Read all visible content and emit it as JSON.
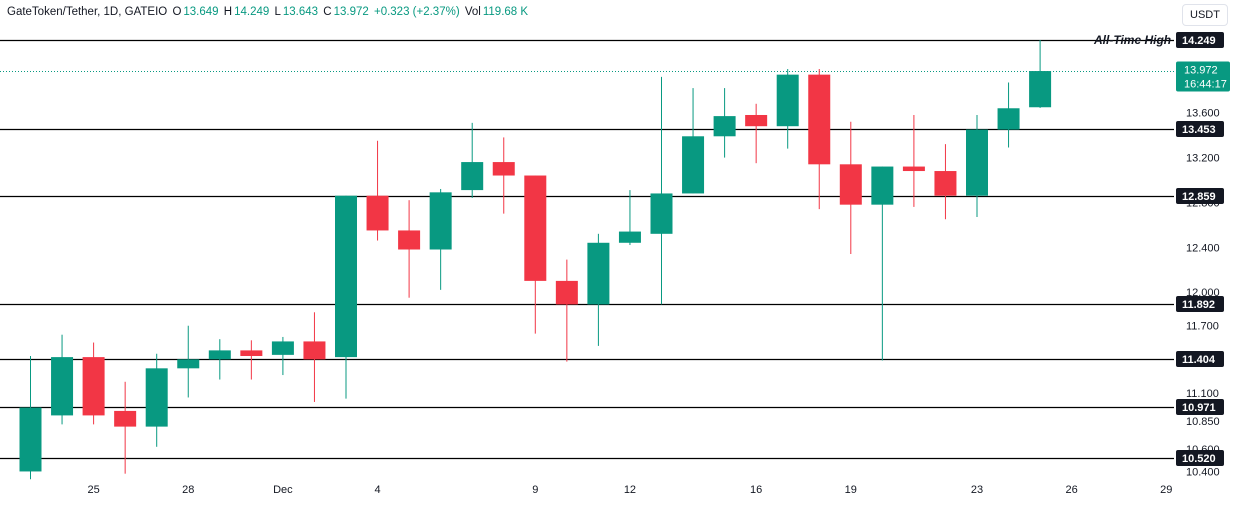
{
  "header": {
    "symbol": "GateToken/Tether, 1D, GATEIO",
    "o_label": "O",
    "o_value": "13.649",
    "h_label": "H",
    "h_value": "14.249",
    "l_label": "L",
    "l_value": "13.643",
    "c_label": "C",
    "c_value": "13.972",
    "change": "+0.323 (+2.37%)",
    "vol_label": "Vol",
    "vol_value": "119.68 K"
  },
  "currency_button": "USDT",
  "ath_label": "All-Time High",
  "price_tag": {
    "price": "13.972",
    "countdown": "16:44:17"
  },
  "colors": {
    "up": "#089981",
    "down": "#f23645",
    "line": "#000000",
    "tag": "#131722",
    "grid_text": "#131722"
  },
  "chart_data": {
    "type": "candlestick",
    "title": "GateToken/Tether, 1D, GATEIO",
    "x_tick_labels": [
      {
        "index": 2,
        "label": "25"
      },
      {
        "index": 5,
        "label": "28"
      },
      {
        "index": 8,
        "label": "Dec"
      },
      {
        "index": 11,
        "label": "4"
      },
      {
        "index": 16,
        "label": "9"
      },
      {
        "index": 19,
        "label": "12"
      },
      {
        "index": 23,
        "label": "16"
      },
      {
        "index": 26,
        "label": "19"
      },
      {
        "index": 30,
        "label": "23"
      },
      {
        "index": 33,
        "label": "26"
      },
      {
        "index": 36,
        "label": "29"
      }
    ],
    "y_ticks": [
      "10.400",
      "10.600",
      "10.850",
      "11.100",
      "11.700",
      "12.000",
      "12.400",
      "12.800",
      "13.200",
      "13.600"
    ],
    "y_range": [
      10.35,
      14.45
    ],
    "horizontal_lines": [
      "10.520",
      "10.971",
      "11.404",
      "11.892",
      "12.859",
      "13.453",
      "14.249"
    ],
    "last_price": 13.972,
    "candles": [
      {
        "o": 10.4,
        "h": 11.43,
        "l": 10.33,
        "c": 10.97
      },
      {
        "o": 10.9,
        "h": 11.62,
        "l": 10.82,
        "c": 11.42
      },
      {
        "o": 11.42,
        "h": 11.55,
        "l": 10.82,
        "c": 10.9
      },
      {
        "o": 10.94,
        "h": 11.2,
        "l": 10.38,
        "c": 10.8
      },
      {
        "o": 10.8,
        "h": 11.45,
        "l": 10.62,
        "c": 11.32
      },
      {
        "o": 11.32,
        "h": 11.7,
        "l": 11.06,
        "c": 11.4
      },
      {
        "o": 11.4,
        "h": 11.58,
        "l": 11.22,
        "c": 11.48
      },
      {
        "o": 11.48,
        "h": 11.57,
        "l": 11.22,
        "c": 11.43
      },
      {
        "o": 11.44,
        "h": 11.6,
        "l": 11.26,
        "c": 11.56
      },
      {
        "o": 11.56,
        "h": 11.82,
        "l": 11.02,
        "c": 11.4
      },
      {
        "o": 11.42,
        "h": 12.86,
        "l": 11.05,
        "c": 12.86
      },
      {
        "o": 12.86,
        "h": 13.35,
        "l": 12.46,
        "c": 12.55
      },
      {
        "o": 12.55,
        "h": 12.82,
        "l": 11.95,
        "c": 12.38
      },
      {
        "o": 12.38,
        "h": 12.92,
        "l": 12.02,
        "c": 12.89
      },
      {
        "o": 12.91,
        "h": 13.51,
        "l": 12.84,
        "c": 13.16
      },
      {
        "o": 13.16,
        "h": 13.38,
        "l": 12.7,
        "c": 13.04
      },
      {
        "o": 13.04,
        "h": 13.04,
        "l": 11.63,
        "c": 12.1
      },
      {
        "o": 12.1,
        "h": 12.29,
        "l": 11.38,
        "c": 11.89
      },
      {
        "o": 11.89,
        "h": 12.52,
        "l": 11.52,
        "c": 12.44
      },
      {
        "o": 12.44,
        "h": 12.91,
        "l": 12.42,
        "c": 12.54
      },
      {
        "o": 12.52,
        "h": 13.92,
        "l": 11.89,
        "c": 12.88
      },
      {
        "o": 12.88,
        "h": 13.82,
        "l": 12.88,
        "c": 13.39
      },
      {
        "o": 13.39,
        "h": 13.82,
        "l": 13.2,
        "c": 13.57
      },
      {
        "o": 13.58,
        "h": 13.68,
        "l": 13.15,
        "c": 13.48
      },
      {
        "o": 13.48,
        "h": 13.99,
        "l": 13.28,
        "c": 13.94
      },
      {
        "o": 13.94,
        "h": 13.99,
        "l": 12.74,
        "c": 13.14
      },
      {
        "o": 13.14,
        "h": 13.52,
        "l": 12.34,
        "c": 12.78
      },
      {
        "o": 12.78,
        "h": 13.12,
        "l": 11.39,
        "c": 13.12
      },
      {
        "o": 13.12,
        "h": 13.58,
        "l": 12.76,
        "c": 13.08
      },
      {
        "o": 13.08,
        "h": 13.32,
        "l": 12.65,
        "c": 12.86
      },
      {
        "o": 12.86,
        "h": 13.58,
        "l": 12.67,
        "c": 13.45
      },
      {
        "o": 13.45,
        "h": 13.87,
        "l": 13.29,
        "c": 13.64
      },
      {
        "o": 13.649,
        "h": 14.249,
        "l": 13.643,
        "c": 13.972
      }
    ]
  }
}
